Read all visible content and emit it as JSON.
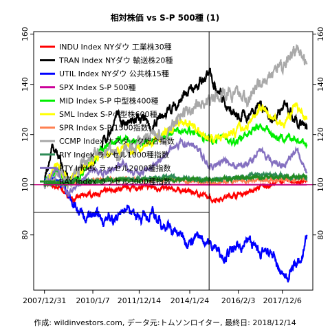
{
  "chart_data": {
    "type": "line",
    "title": "相対株価 vs S-P 500種 (1)",
    "caption": "作成: wildinvestors.com, データ元:トムソンロイター, 最終日: 2018/12/14",
    "xlabel": "",
    "ylabel": "",
    "x_start": "2007/12/31",
    "x_end": "2018/12/14",
    "x_tick_labels": [
      "2007/12/31",
      "2010/1/7",
      "2011/12/14",
      "2014/1/24",
      "2016/2/3",
      "2017/12/6"
    ],
    "x_tick_dates": [
      "2007-12-31",
      "2010-01-07",
      "2011-12-14",
      "2014-01-24",
      "2016-02-03",
      "2017-12-06"
    ],
    "ylim": [
      58,
      161
    ],
    "y_ticks": [
      80,
      100,
      120,
      140,
      160
    ],
    "y_axes": [
      "left",
      "right"
    ],
    "reference_line": {
      "y": 100,
      "color": "#c0007a"
    },
    "grid": false,
    "crosshair": {
      "x": "2014-11-15",
      "y": 89
    },
    "legend_position": "top-left",
    "series": [
      {
        "name": "INDU Index NYダウ 工業株30種",
        "color": "#ff0000",
        "values": [
          [
            2007.99,
            100
          ],
          [
            2008.6,
            99
          ],
          [
            2009.2,
            94
          ],
          [
            2009.7,
            96
          ],
          [
            2010.5,
            97
          ],
          [
            2011.5,
            99
          ],
          [
            2012.5,
            99
          ],
          [
            2013.5,
            98
          ],
          [
            2014.3,
            97
          ],
          [
            2015.0,
            94
          ],
          [
            2015.5,
            95
          ],
          [
            2016.0,
            96
          ],
          [
            2016.5,
            97
          ],
          [
            2017.0,
            99
          ],
          [
            2017.5,
            100
          ],
          [
            2018.0,
            102
          ],
          [
            2018.5,
            101
          ],
          [
            2018.95,
            101
          ]
        ]
      },
      {
        "name": "TRAN Index NYダウ 輸送株20種",
        "color": "#000000",
        "values": [
          [
            2007.99,
            100
          ],
          [
            2008.3,
            115
          ],
          [
            2008.6,
            110
          ],
          [
            2009.0,
            102
          ],
          [
            2009.4,
            103
          ],
          [
            2010.0,
            110
          ],
          [
            2010.5,
            117
          ],
          [
            2011.0,
            127
          ],
          [
            2011.5,
            124
          ],
          [
            2012.0,
            126
          ],
          [
            2012.5,
            122
          ],
          [
            2013.0,
            128
          ],
          [
            2013.5,
            132
          ],
          [
            2014.0,
            136
          ],
          [
            2014.5,
            141
          ],
          [
            2014.95,
            144
          ],
          [
            2015.3,
            137
          ],
          [
            2015.7,
            131
          ],
          [
            2016.0,
            126
          ],
          [
            2016.5,
            128
          ],
          [
            2017.0,
            133
          ],
          [
            2017.5,
            126
          ],
          [
            2018.0,
            131
          ],
          [
            2018.5,
            124
          ],
          [
            2018.95,
            122
          ]
        ]
      },
      {
        "name": "UTIL Index NYダウ 公共株15種",
        "color": "#0000ff",
        "values": [
          [
            2007.99,
            100
          ],
          [
            2008.3,
            104
          ],
          [
            2008.7,
            101
          ],
          [
            2009.0,
            97
          ],
          [
            2009.3,
            92
          ],
          [
            2009.7,
            86
          ],
          [
            2010.0,
            88
          ],
          [
            2010.5,
            86
          ],
          [
            2011.0,
            87
          ],
          [
            2011.5,
            91
          ],
          [
            2012.0,
            87
          ],
          [
            2012.5,
            88
          ],
          [
            2013.0,
            84
          ],
          [
            2013.5,
            81
          ],
          [
            2014.0,
            78
          ],
          [
            2014.5,
            79
          ],
          [
            2015.0,
            76
          ],
          [
            2015.5,
            72
          ],
          [
            2016.0,
            74
          ],
          [
            2016.5,
            78
          ],
          [
            2017.0,
            73
          ],
          [
            2017.5,
            72
          ],
          [
            2017.9,
            64
          ],
          [
            2018.1,
            63
          ],
          [
            2018.4,
            68
          ],
          [
            2018.7,
            69
          ],
          [
            2018.95,
            80
          ]
        ]
      },
      {
        "name": "SPX Index S-P 500種",
        "color": "#cc0099",
        "values": [
          [
            2007.99,
            100
          ],
          [
            2018.95,
            100
          ]
        ]
      },
      {
        "name": "MID Index S-P 中型株400種",
        "color": "#00ee00",
        "values": [
          [
            2007.99,
            100
          ],
          [
            2008.5,
            106
          ],
          [
            2009.0,
            100
          ],
          [
            2009.5,
            104
          ],
          [
            2010.0,
            110
          ],
          [
            2010.6,
            116
          ],
          [
            2011.3,
            118
          ],
          [
            2011.8,
            116
          ],
          [
            2012.5,
            117
          ],
          [
            2013.0,
            119
          ],
          [
            2013.7,
            122
          ],
          [
            2014.3,
            121
          ],
          [
            2014.9,
            118
          ],
          [
            2015.5,
            119
          ],
          [
            2016.0,
            117
          ],
          [
            2016.5,
            120
          ],
          [
            2017.0,
            124
          ],
          [
            2017.5,
            120
          ],
          [
            2018.0,
            118
          ],
          [
            2018.5,
            118
          ],
          [
            2018.95,
            116
          ]
        ]
      },
      {
        "name": "SML Index S-P小型株600種",
        "color": "#ffff00",
        "values": [
          [
            2007.99,
            100
          ],
          [
            2008.5,
            109
          ],
          [
            2009.0,
            101
          ],
          [
            2009.5,
            106
          ],
          [
            2010.0,
            110
          ],
          [
            2010.6,
            113
          ],
          [
            2011.3,
            115
          ],
          [
            2011.8,
            113
          ],
          [
            2012.5,
            117
          ],
          [
            2013.0,
            120
          ],
          [
            2013.7,
            126
          ],
          [
            2014.3,
            123
          ],
          [
            2014.9,
            118
          ],
          [
            2015.5,
            120
          ],
          [
            2016.0,
            121
          ],
          [
            2016.5,
            124
          ],
          [
            2017.0,
            131
          ],
          [
            2017.5,
            127
          ],
          [
            2018.0,
            124
          ],
          [
            2018.5,
            132
          ],
          [
            2018.95,
            126
          ]
        ]
      },
      {
        "name": "SPR Index S-P 1500指数",
        "color": "#ff7f50",
        "values": [
          [
            2007.99,
            100
          ],
          [
            2009.0,
            101
          ],
          [
            2011.0,
            102
          ],
          [
            2013.0,
            102
          ],
          [
            2015.0,
            101
          ],
          [
            2017.0,
            102
          ],
          [
            2018.95,
            102
          ]
        ]
      },
      {
        "name": "CCMP Index ナスダック総合指数",
        "color": "#a9a9a9",
        "values": [
          [
            2007.99,
            100
          ],
          [
            2008.5,
            104
          ],
          [
            2009.0,
            101
          ],
          [
            2009.5,
            108
          ],
          [
            2010.0,
            111
          ],
          [
            2010.6,
            113
          ],
          [
            2011.3,
            112
          ],
          [
            2011.8,
            115
          ],
          [
            2012.5,
            121
          ],
          [
            2013.0,
            119
          ],
          [
            2013.7,
            127
          ],
          [
            2014.3,
            132
          ],
          [
            2014.9,
            133
          ],
          [
            2015.5,
            137
          ],
          [
            2016.0,
            136
          ],
          [
            2016.5,
            135
          ],
          [
            2017.0,
            140
          ],
          [
            2017.5,
            144
          ],
          [
            2018.0,
            148
          ],
          [
            2018.5,
            154
          ],
          [
            2018.95,
            148
          ]
        ]
      },
      {
        "name": "RIY Index ラッセル1000種指数",
        "color": "#2e8b57",
        "values": [
          [
            2007.99,
            100
          ],
          [
            2009.0,
            101
          ],
          [
            2011.0,
            102
          ],
          [
            2013.0,
            103
          ],
          [
            2015.0,
            102
          ],
          [
            2017.0,
            104
          ],
          [
            2018.95,
            103
          ]
        ]
      },
      {
        "name": "RTY Index ラッセル2000種指数",
        "color": "#8470c0",
        "values": [
          [
            2007.99,
            100
          ],
          [
            2008.5,
            106
          ],
          [
            2009.0,
            97
          ],
          [
            2009.5,
            101
          ],
          [
            2010.0,
            106
          ],
          [
            2010.6,
            105
          ],
          [
            2011.3,
            109
          ],
          [
            2011.8,
            104
          ],
          [
            2012.5,
            108
          ],
          [
            2013.0,
            112
          ],
          [
            2013.7,
            117
          ],
          [
            2014.3,
            115
          ],
          [
            2014.9,
            106
          ],
          [
            2015.5,
            110
          ],
          [
            2016.0,
            107
          ],
          [
            2016.5,
            108
          ],
          [
            2017.0,
            114
          ],
          [
            2017.5,
            109
          ],
          [
            2018.0,
            107
          ],
          [
            2018.5,
            114
          ],
          [
            2018.95,
            105
          ]
        ]
      },
      {
        "name": "RAY Index ラッセル3000種指数",
        "color": "#228b22",
        "values": [
          [
            2007.99,
            100
          ],
          [
            2009.0,
            101
          ],
          [
            2011.0,
            102
          ],
          [
            2013.0,
            102
          ],
          [
            2015.0,
            102
          ],
          [
            2017.0,
            103
          ],
          [
            2018.95,
            103
          ]
        ]
      }
    ]
  }
}
